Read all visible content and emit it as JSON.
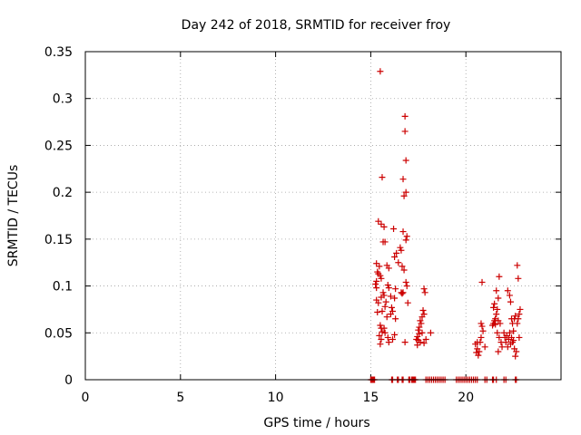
{
  "chart_data": {
    "type": "scatter",
    "title": "Day 242 of 2018, SRMTID for receiver froy",
    "xlabel": "GPS time / hours",
    "ylabel": "SRMTID / TECUs",
    "xlim": [
      0,
      25
    ],
    "ylim": [
      0,
      0.35
    ],
    "grid": true,
    "x_ticks": [
      0,
      5,
      10,
      15,
      20
    ],
    "y_ticks": [
      0,
      0.05,
      0.1,
      0.15,
      0.2,
      0.25,
      0.3,
      0.35
    ],
    "x_tick_labels": [
      "0",
      "5",
      "10",
      "15",
      "20"
    ],
    "y_tick_labels": [
      "0",
      "0.05",
      "0.1",
      "0.15",
      "0.2",
      "0.25",
      "0.3",
      "0.35"
    ],
    "marker": "+",
    "color": "#cc0000",
    "series": [
      {
        "name": "SRMTID",
        "points": [
          [
            15.0,
            0
          ],
          [
            15.05,
            0
          ],
          [
            15.1,
            0
          ],
          [
            15.15,
            0
          ],
          [
            15.2,
            0
          ],
          [
            16.1,
            0
          ],
          [
            16.15,
            0
          ],
          [
            16.4,
            0
          ],
          [
            16.45,
            0
          ],
          [
            16.65,
            0
          ],
          [
            16.7,
            0
          ],
          [
            17.0,
            0
          ],
          [
            17.05,
            0
          ],
          [
            17.15,
            0
          ],
          [
            17.2,
            0
          ],
          [
            17.25,
            0
          ],
          [
            17.3,
            0
          ],
          [
            17.35,
            0
          ],
          [
            17.9,
            0
          ],
          [
            18.0,
            0
          ],
          [
            18.1,
            0
          ],
          [
            18.2,
            0
          ],
          [
            18.3,
            0
          ],
          [
            18.4,
            0
          ],
          [
            18.5,
            0
          ],
          [
            18.6,
            0
          ],
          [
            18.7,
            0
          ],
          [
            18.8,
            0
          ],
          [
            18.9,
            0
          ],
          [
            19.5,
            0
          ],
          [
            19.6,
            0
          ],
          [
            19.7,
            0
          ],
          [
            19.8,
            0
          ],
          [
            19.9,
            0
          ],
          [
            20.0,
            0
          ],
          [
            20.1,
            0
          ],
          [
            20.2,
            0
          ],
          [
            20.3,
            0
          ],
          [
            20.4,
            0
          ],
          [
            20.5,
            0
          ],
          [
            20.6,
            0
          ],
          [
            21.0,
            0
          ],
          [
            21.1,
            0
          ],
          [
            21.4,
            0
          ],
          [
            21.45,
            0
          ],
          [
            21.6,
            0
          ],
          [
            22.0,
            0
          ],
          [
            22.1,
            0
          ],
          [
            22.6,
            0
          ],
          [
            22.65,
            0
          ],
          [
            15.5,
            0.329
          ],
          [
            15.6,
            0.216
          ],
          [
            16.8,
            0.281
          ],
          [
            16.8,
            0.265
          ],
          [
            16.85,
            0.234
          ],
          [
            16.85,
            0.2
          ],
          [
            16.75,
            0.196
          ],
          [
            16.7,
            0.214
          ],
          [
            15.4,
            0.169
          ],
          [
            15.55,
            0.166
          ],
          [
            15.7,
            0.163
          ],
          [
            16.2,
            0.161
          ],
          [
            16.7,
            0.158
          ],
          [
            16.9,
            0.153
          ],
          [
            16.85,
            0.149
          ],
          [
            15.65,
            0.147
          ],
          [
            15.75,
            0.147
          ],
          [
            16.55,
            0.141
          ],
          [
            16.6,
            0.138
          ],
          [
            16.35,
            0.135
          ],
          [
            16.25,
            0.131
          ],
          [
            16.45,
            0.125
          ],
          [
            16.65,
            0.121
          ],
          [
            15.3,
            0.124
          ],
          [
            15.45,
            0.121
          ],
          [
            15.85,
            0.122
          ],
          [
            15.95,
            0.119
          ],
          [
            16.75,
            0.117
          ],
          [
            15.35,
            0.115
          ],
          [
            15.4,
            0.113
          ],
          [
            15.5,
            0.111
          ],
          [
            15.55,
            0.108
          ],
          [
            15.3,
            0.105
          ],
          [
            15.25,
            0.102
          ],
          [
            15.3,
            0.098
          ],
          [
            15.9,
            0.101
          ],
          [
            15.95,
            0.098
          ],
          [
            16.85,
            0.104
          ],
          [
            16.9,
            0.1
          ],
          [
            16.3,
            0.097
          ],
          [
            16.6,
            0.093
          ],
          [
            16.65,
            0.092
          ],
          [
            16.7,
            0.093
          ],
          [
            15.65,
            0.093
          ],
          [
            15.7,
            0.09
          ],
          [
            15.55,
            0.088
          ],
          [
            16.05,
            0.089
          ],
          [
            16.25,
            0.087
          ],
          [
            15.3,
            0.085
          ],
          [
            15.4,
            0.082
          ],
          [
            15.8,
            0.083
          ],
          [
            16.95,
            0.082
          ],
          [
            15.75,
            0.078
          ],
          [
            16.1,
            0.077
          ],
          [
            16.15,
            0.073
          ],
          [
            15.35,
            0.072
          ],
          [
            15.6,
            0.073
          ],
          [
            16.05,
            0.07
          ],
          [
            15.85,
            0.067
          ],
          [
            16.3,
            0.065
          ],
          [
            15.5,
            0.058
          ],
          [
            15.55,
            0.055
          ],
          [
            15.7,
            0.055
          ],
          [
            15.6,
            0.051
          ],
          [
            15.75,
            0.05
          ],
          [
            15.45,
            0.047
          ],
          [
            15.9,
            0.045
          ],
          [
            15.55,
            0.043
          ],
          [
            16.15,
            0.043
          ],
          [
            16.25,
            0.048
          ],
          [
            15.5,
            0.038
          ],
          [
            15.95,
            0.04
          ],
          [
            16.8,
            0.04
          ],
          [
            17.8,
            0.097
          ],
          [
            17.85,
            0.093
          ],
          [
            17.75,
            0.074
          ],
          [
            17.8,
            0.07
          ],
          [
            17.7,
            0.067
          ],
          [
            17.6,
            0.063
          ],
          [
            17.65,
            0.06
          ],
          [
            17.55,
            0.056
          ],
          [
            17.5,
            0.053
          ],
          [
            17.55,
            0.049
          ],
          [
            17.45,
            0.046
          ],
          [
            17.4,
            0.043
          ],
          [
            17.5,
            0.042
          ],
          [
            17.6,
            0.04
          ],
          [
            17.45,
            0.037
          ],
          [
            17.8,
            0.039
          ],
          [
            17.9,
            0.043
          ],
          [
            18.15,
            0.05
          ],
          [
            17.7,
            0.05
          ],
          [
            20.55,
            0.029
          ],
          [
            20.6,
            0.033
          ],
          [
            20.65,
            0.026
          ],
          [
            20.7,
            0.03
          ],
          [
            20.75,
            0.04
          ],
          [
            20.8,
            0.045
          ],
          [
            20.5,
            0.038
          ],
          [
            20.6,
            0.04
          ],
          [
            20.85,
            0.057
          ],
          [
            20.8,
            0.06
          ],
          [
            20.9,
            0.052
          ],
          [
            20.85,
            0.104
          ],
          [
            21.0,
            0.035
          ],
          [
            21.5,
            0.063
          ],
          [
            21.55,
            0.059
          ],
          [
            21.6,
            0.07
          ],
          [
            21.45,
            0.077
          ],
          [
            21.5,
            0.081
          ],
          [
            21.65,
            0.075
          ],
          [
            21.55,
            0.065
          ],
          [
            21.45,
            0.06
          ],
          [
            21.4,
            0.058
          ],
          [
            21.7,
            0.087
          ],
          [
            21.75,
            0.11
          ],
          [
            21.6,
            0.095
          ],
          [
            21.65,
            0.05
          ],
          [
            21.7,
            0.063
          ],
          [
            21.8,
            0.06
          ],
          [
            21.85,
            0.04
          ],
          [
            21.75,
            0.045
          ],
          [
            21.9,
            0.035
          ],
          [
            21.7,
            0.03
          ],
          [
            22.0,
            0.05
          ],
          [
            22.05,
            0.045
          ],
          [
            22.1,
            0.04
          ],
          [
            22.15,
            0.047
          ],
          [
            22.2,
            0.035
          ],
          [
            22.25,
            0.043
          ],
          [
            22.3,
            0.05
          ],
          [
            22.35,
            0.038
          ],
          [
            22.4,
            0.045
          ],
          [
            22.45,
            0.04
          ],
          [
            22.5,
            0.042
          ],
          [
            22.55,
            0.033
          ],
          [
            22.6,
            0.025
          ],
          [
            22.65,
            0.03
          ],
          [
            22.2,
            0.095
          ],
          [
            22.3,
            0.09
          ],
          [
            22.35,
            0.083
          ],
          [
            22.4,
            0.065
          ],
          [
            22.45,
            0.06
          ],
          [
            22.55,
            0.065
          ],
          [
            22.6,
            0.068
          ],
          [
            22.7,
            0.06
          ],
          [
            22.75,
            0.065
          ],
          [
            22.8,
            0.07
          ],
          [
            22.85,
            0.075
          ],
          [
            22.75,
            0.108
          ],
          [
            22.7,
            0.122
          ],
          [
            22.8,
            0.045
          ],
          [
            22.5,
            0.052
          ]
        ]
      }
    ]
  }
}
